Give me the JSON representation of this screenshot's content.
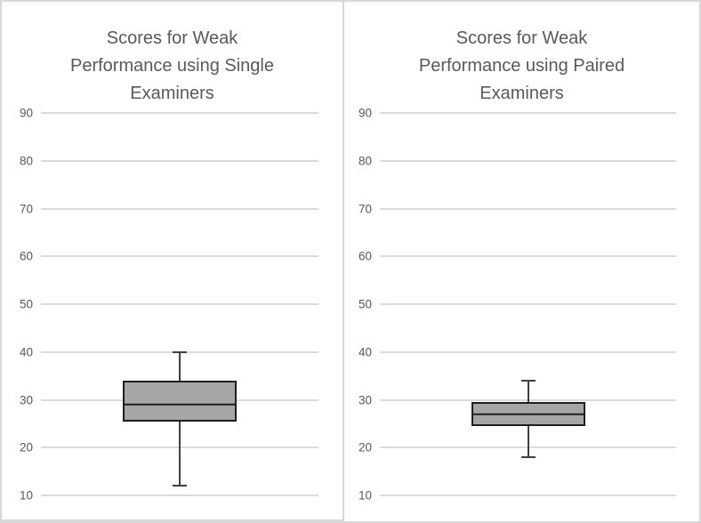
{
  "colors": {
    "background": "#ffffff",
    "panel_border": "#d9d9d9",
    "gridline": "#dbdbdb",
    "text": "#595959",
    "box_fill": "#a6a6a6",
    "box_border": "#1f1f1f",
    "whisker": "#404040"
  },
  "chart_data": [
    {
      "type": "boxplot",
      "title": "Scores for Weak Performance using Single Examiners",
      "ylim": [
        10,
        90
      ],
      "yticks": [
        90,
        80,
        70,
        60,
        50,
        40,
        30,
        20,
        10
      ],
      "grid": true,
      "legend": false,
      "xlabel": "",
      "ylabel": "",
      "series": [
        {
          "min": 12,
          "q1": 25.5,
          "median": 29,
          "q3": 34,
          "max": 40
        }
      ]
    },
    {
      "type": "boxplot",
      "title": "Scores for Weak Performance using Paired Examiners",
      "ylim": [
        10,
        90
      ],
      "yticks": [
        90,
        80,
        70,
        60,
        50,
        40,
        30,
        20,
        10
      ],
      "grid": true,
      "legend": false,
      "xlabel": "",
      "ylabel": "",
      "series": [
        {
          "min": 18,
          "q1": 24.5,
          "median": 27,
          "q3": 29.5,
          "max": 34
        }
      ]
    }
  ]
}
